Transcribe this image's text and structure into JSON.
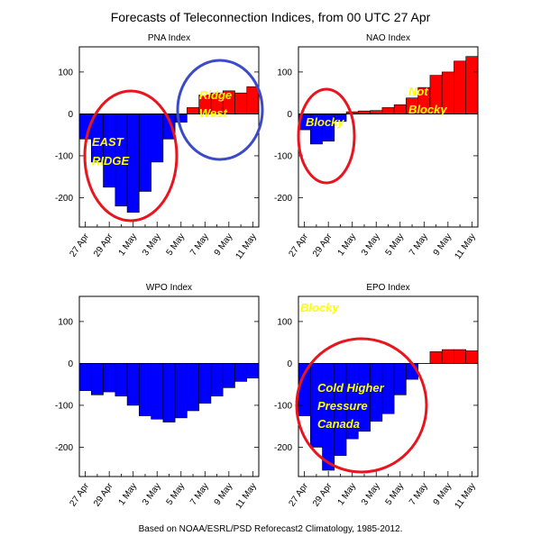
{
  "title": "Forecasts of Teleconnection Indices, from 00 UTC 27 Apr",
  "footer": "Based on NOAA/ESRL/PSD Reforecast2 Climatology, 1985-2012.",
  "colors": {
    "positive": "#ff0000",
    "negative": "#0000ff",
    "annotation_text": "#ffff00",
    "circle_red": "#e8141e",
    "circle_blue": "#3b4bc8"
  },
  "chart_data": [
    {
      "type": "bar",
      "title": "PNA Index",
      "ylim": [
        -270,
        160
      ],
      "yticks": [
        -200,
        -100,
        0,
        100
      ],
      "xtick_labels": [
        "27 Apr",
        "29 Apr",
        "1 May",
        "3 May",
        "5 May",
        "7 May",
        "9 May",
        "11 May"
      ],
      "categories": [
        "27 Apr",
        "28 Apr",
        "29 Apr",
        "30 Apr",
        "1 May",
        "2 May",
        "3 May",
        "4 May",
        "5 May",
        "6 May",
        "7 May",
        "8 May",
        "9 May",
        "10 May",
        "11 May"
      ],
      "values": [
        -60,
        -115,
        -175,
        -220,
        -235,
        -185,
        -115,
        -60,
        -20,
        15,
        45,
        50,
        55,
        50,
        65
      ],
      "annotations": [
        {
          "text": "EAST",
          "color": "yellow"
        },
        {
          "text": "RIDGE",
          "color": "yellow"
        },
        {
          "text": "Ridge",
          "color": "yellow"
        },
        {
          "text": "West",
          "color": "yellow"
        }
      ]
    },
    {
      "type": "bar",
      "title": "NAO Index",
      "ylim": [
        -270,
        160
      ],
      "yticks": [
        -200,
        -100,
        0,
        100
      ],
      "xtick_labels": [
        "27 Apr",
        "29 Apr",
        "1 May",
        "3 May",
        "5 May",
        "7 May",
        "9 May",
        "11 May"
      ],
      "categories": [
        "27 Apr",
        "28 Apr",
        "29 Apr",
        "30 Apr",
        "1 May",
        "2 May",
        "3 May",
        "4 May",
        "5 May",
        "6 May",
        "7 May",
        "8 May",
        "9 May",
        "10 May",
        "11 May"
      ],
      "values": [
        -38,
        -72,
        -65,
        -18,
        5,
        7,
        8,
        15,
        22,
        38,
        63,
        92,
        100,
        126,
        137
      ],
      "annotations": [
        {
          "text": "Blocky",
          "color": "yellow"
        },
        {
          "text": "Not",
          "color": "yellow"
        },
        {
          "text": "Blocky",
          "color": "yellow"
        }
      ]
    },
    {
      "type": "bar",
      "title": "WPO Index",
      "ylim": [
        -270,
        160
      ],
      "yticks": [
        -200,
        -100,
        0,
        100
      ],
      "xtick_labels": [
        "27 Apr",
        "29 Apr",
        "1 May",
        "3 May",
        "5 May",
        "7 May",
        "9 May",
        "11 May"
      ],
      "categories": [
        "27 Apr",
        "28 Apr",
        "29 Apr",
        "30 Apr",
        "1 May",
        "2 May",
        "3 May",
        "4 May",
        "5 May",
        "6 May",
        "7 May",
        "8 May",
        "9 May",
        "10 May",
        "11 May"
      ],
      "values": [
        -65,
        -75,
        -68,
        -78,
        -100,
        -125,
        -133,
        -140,
        -130,
        -113,
        -95,
        -78,
        -58,
        -43,
        -35
      ],
      "annotations": []
    },
    {
      "type": "bar",
      "title": "EPO Index",
      "ylim": [
        -270,
        160
      ],
      "yticks": [
        -200,
        -100,
        0,
        100
      ],
      "xtick_labels": [
        "27 Apr",
        "29 Apr",
        "1 May",
        "3 May",
        "5 May",
        "7 May",
        "9 May",
        "11 May"
      ],
      "categories": [
        "27 Apr",
        "28 Apr",
        "29 Apr",
        "30 Apr",
        "1 May",
        "2 May",
        "3 May",
        "4 May",
        "5 May",
        "6 May",
        "7 May",
        "8 May",
        "9 May",
        "10 May",
        "11 May"
      ],
      "values": [
        -125,
        -200,
        -255,
        -220,
        -180,
        -162,
        -138,
        -120,
        -75,
        -38,
        0,
        28,
        33,
        33,
        30
      ],
      "annotations": [
        {
          "text": "Blocky",
          "color": "yellow"
        },
        {
          "text": "Cold Higher",
          "color": "yellow"
        },
        {
          "text": "Pressure",
          "color": "yellow"
        },
        {
          "text": "Canada",
          "color": "yellow"
        }
      ]
    }
  ]
}
